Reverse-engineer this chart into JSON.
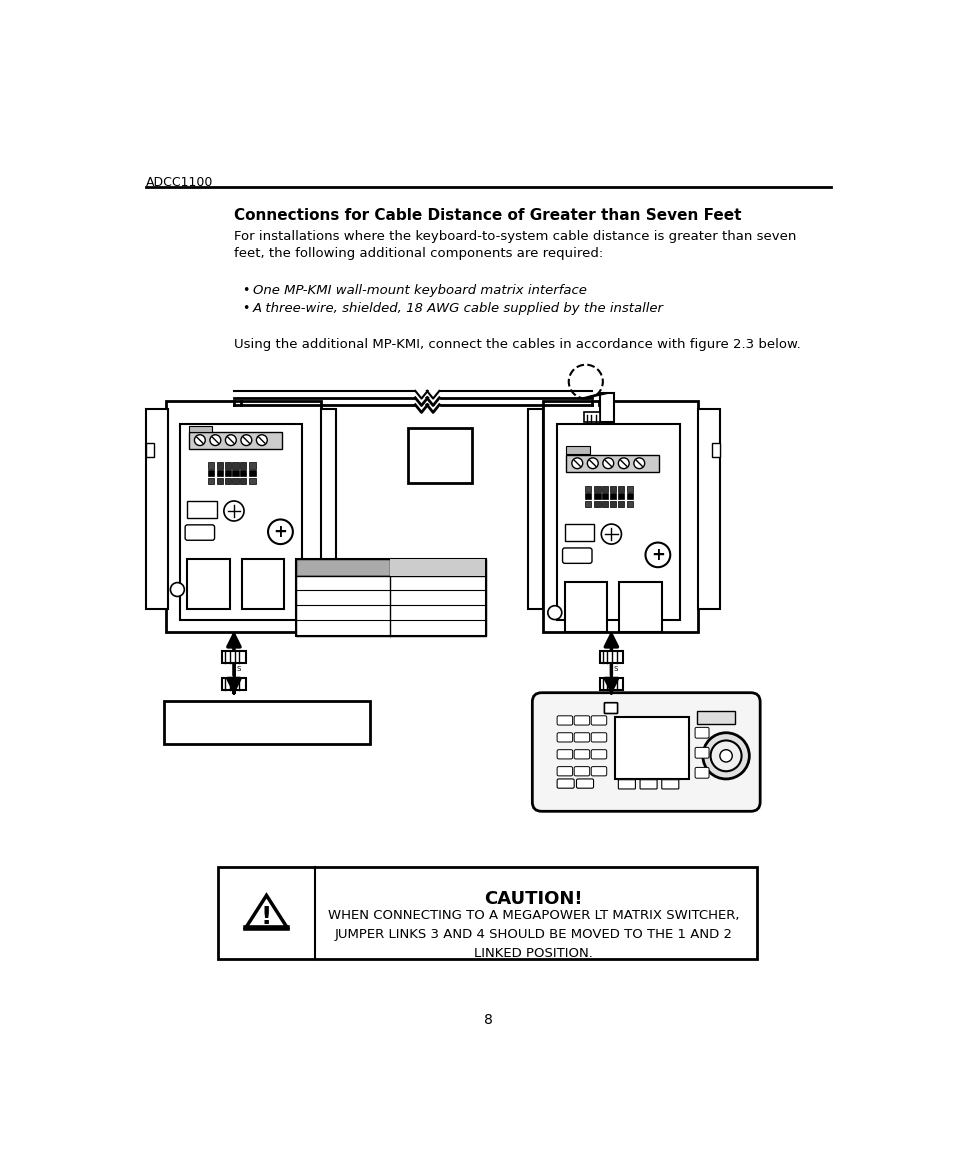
{
  "page_label": "ADCC1100",
  "page_number": "8",
  "title": "Connections for Cable Distance of Greater than Seven Feet",
  "body_text": "For installations where the keyboard-to-system cable distance is greater than seven\nfeet, the following additional components are required:",
  "bullet1": "One MP-KMI wall-mount keyboard matrix interface",
  "bullet2": "A three-wire, shielded, 18 AWG cable supplied by the installer",
  "figure_text": "Using the additional MP-KMI, connect the cables in accordance with figure 2.3 below.",
  "caution_title": "CAUTION!",
  "caution_body": "WHEN CONNECTING TO A MEGAPOWER LT MATRIX SWITCHER,\nJUMPER LINKS 3 AND 4 SHOULD BE MOVED TO THE 1 AND 2\nLINKED POSITION.",
  "bg_color": "#ffffff",
  "text_color": "#000000",
  "line_color": "#000000"
}
